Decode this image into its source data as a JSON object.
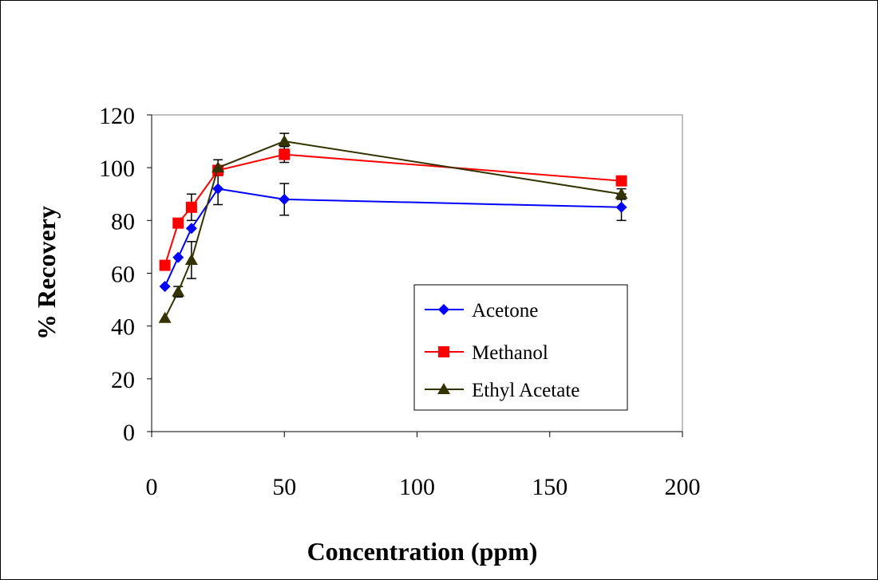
{
  "chart_data": {
    "type": "line",
    "title": "",
    "xlabel": "Concentration  (ppm)",
    "ylabel": "%  Recovery",
    "xlim": [
      0,
      200
    ],
    "ylim": [
      0,
      120
    ],
    "xticks": [
      0,
      50,
      100,
      150,
      200
    ],
    "yticks": [
      0,
      20,
      40,
      60,
      80,
      100,
      120
    ],
    "xtick_labels": [
      "0",
      "50",
      "100",
      "150",
      "200"
    ],
    "ytick_labels": [
      "0",
      "20",
      "40",
      "60",
      "80",
      "100",
      "120"
    ],
    "grid": false,
    "legend_position": "bottom-right inside plot",
    "series": [
      {
        "name": "Acetone",
        "color": "#0000ff",
        "marker": "diamond",
        "x": [
          5,
          10,
          15,
          25,
          50,
          177
        ],
        "y": [
          55,
          66,
          77,
          92,
          88,
          85
        ],
        "error": [
          0,
          0,
          0,
          6,
          6,
          5
        ]
      },
      {
        "name": "Methanol",
        "color": "#ff0000",
        "marker": "square",
        "x": [
          5,
          10,
          15,
          25,
          50,
          177
        ],
        "y": [
          63,
          79,
          85,
          99,
          105,
          95
        ],
        "error": [
          0,
          0,
          5,
          0,
          3,
          0
        ]
      },
      {
        "name": "Ethyl Acetate",
        "color": "#333300",
        "marker": "triangle",
        "x": [
          5,
          10,
          15,
          25,
          50,
          177
        ],
        "y": [
          43,
          53,
          65,
          100,
          110,
          90
        ],
        "error": [
          0,
          2,
          7,
          3,
          3,
          2
        ]
      }
    ]
  }
}
